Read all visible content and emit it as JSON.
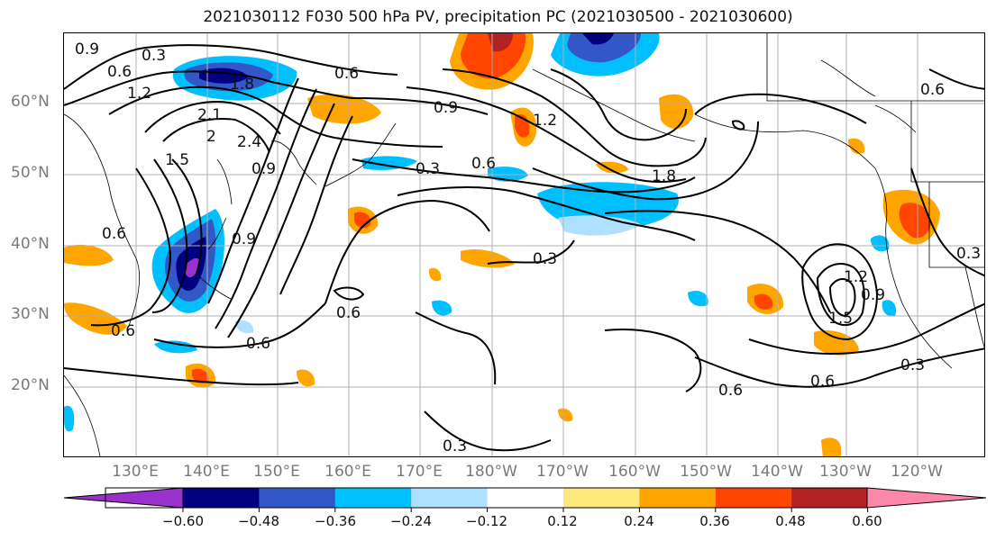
{
  "title": "2021030112 F030 500 hPa PV, precipitation PC (2021030500 - 2021030600)",
  "latitude_labels": [
    "60°N",
    "50°N",
    "40°N",
    "30°N",
    "20°N"
  ],
  "longitude_labels": [
    "130°E",
    "140°E",
    "150°E",
    "160°E",
    "170°E",
    "180°W",
    "170°W",
    "160°W",
    "150°W",
    "140°W",
    "130°W",
    "120°W"
  ],
  "contour_labels": [
    "0.9",
    "0.3",
    "0.6",
    "1.2",
    "1.8",
    "2.1",
    "2",
    "1.5",
    "2.4",
    "0.9",
    "0.6",
    "0.9",
    "0.3",
    "0.6",
    "1.2",
    "1.8",
    "0.6",
    "0.3",
    "0.6",
    "0.6",
    "0.6",
    "0.6",
    "0.3",
    "0.6",
    "0.3",
    "1.2",
    "0.9",
    "0.3",
    "0.9",
    "1.5",
    "0.6"
  ],
  "colorbar": {
    "tick_labels": [
      "−0.60",
      "−0.48",
      "−0.36",
      "−0.24",
      "−0.12",
      "0.12",
      "0.24",
      "0.36",
      "0.48",
      "0.60"
    ],
    "colors": {
      "lt_neg060": "#9932cc",
      "neg060_neg048": "#000080",
      "neg048_neg036": "#3457c8",
      "neg036_neg024": "#00bfff",
      "neg024_neg012": "#b0e0ff",
      "neg012_012": "#ffffff",
      "p012_024": "#ffe87c",
      "p024_036": "#ffa500",
      "p036_048": "#ff4500",
      "p048_060": "#b22222",
      "gt_060": "#ff88aa"
    }
  }
}
